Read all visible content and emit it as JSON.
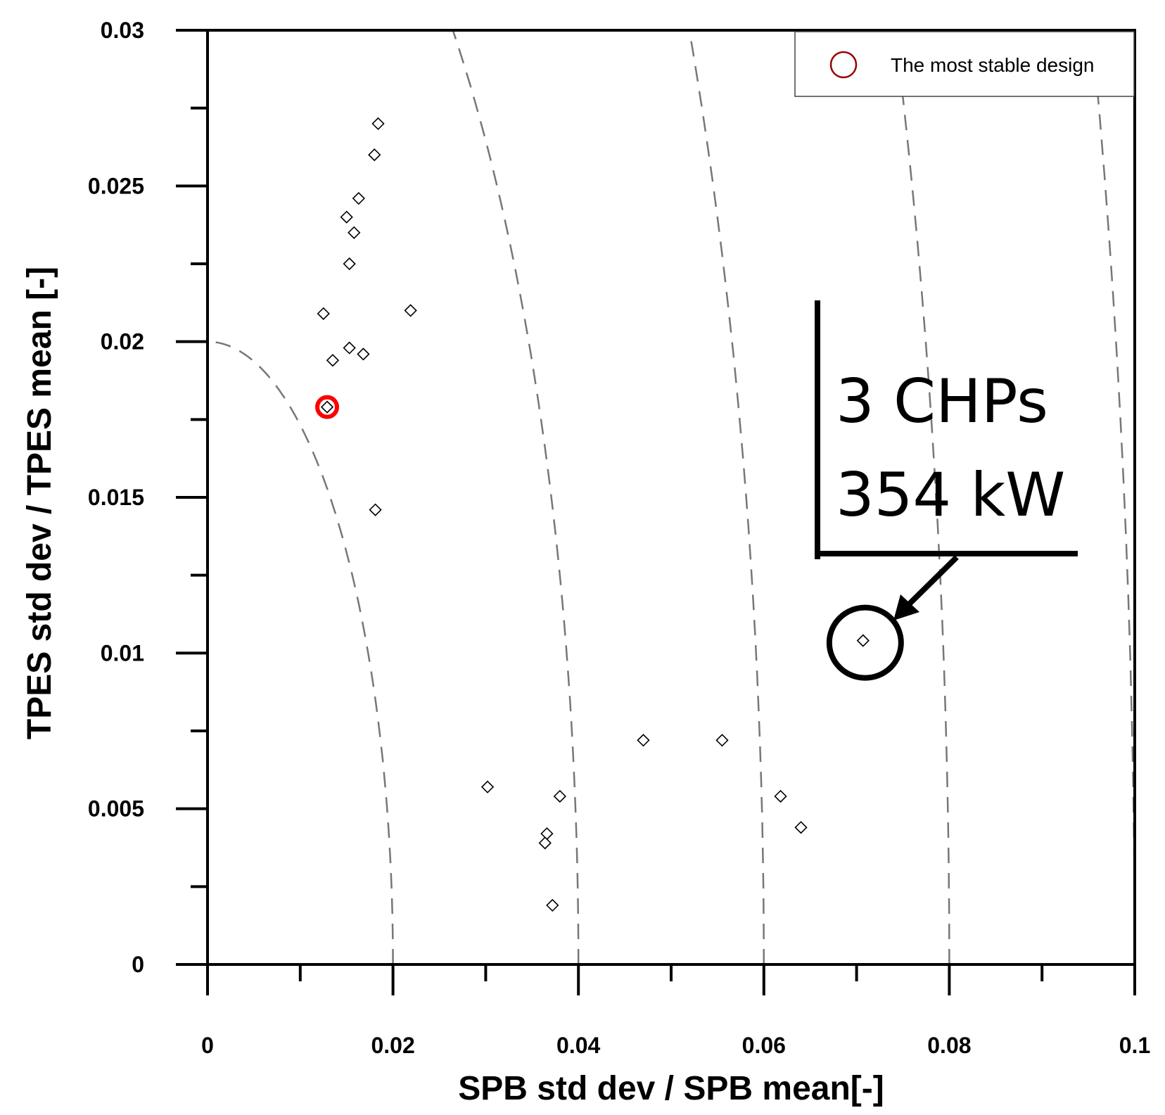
{
  "chart_data": {
    "type": "scatter",
    "xlabel": "SPB std dev / SPB mean[-]",
    "ylabel": "TPES std dev / TPES mean [-]",
    "xlim": [
      0,
      0.1
    ],
    "ylim": [
      0,
      0.03
    ],
    "x_ticks": [
      "0",
      "0.02",
      "0.04",
      "0.06",
      "0.08",
      "0.1"
    ],
    "y_ticks": [
      "0",
      "0.005",
      "0.01",
      "0.015",
      "0.02",
      "0.025",
      "0.03"
    ],
    "grid": false,
    "legend_position": "top-right",
    "legend": [
      {
        "label": "The most stable design",
        "marker": "circle",
        "color": "#990000"
      }
    ],
    "series": [
      {
        "marker": "diamond",
        "color": "#000000",
        "points": [
          [
            0.0184,
            0.027
          ],
          [
            0.018,
            0.026
          ],
          [
            0.0163,
            0.0246
          ],
          [
            0.015,
            0.024
          ],
          [
            0.0158,
            0.0235
          ],
          [
            0.0153,
            0.0225
          ],
          [
            0.0125,
            0.0209
          ],
          [
            0.0219,
            0.021
          ],
          [
            0.0153,
            0.0198
          ],
          [
            0.0168,
            0.0196
          ],
          [
            0.0135,
            0.0194
          ],
          [
            0.0129,
            0.0179
          ],
          [
            0.0181,
            0.0146
          ],
          [
            0.0302,
            0.0057
          ],
          [
            0.038,
            0.0054
          ],
          [
            0.0366,
            0.0042
          ],
          [
            0.0364,
            0.0039
          ],
          [
            0.0372,
            0.0019
          ],
          [
            0.047,
            0.0072
          ],
          [
            0.0555,
            0.0072
          ],
          [
            0.0618,
            0.0054
          ],
          [
            0.064,
            0.0044
          ],
          [
            0.0707,
            0.0104
          ]
        ]
      }
    ],
    "highlight": {
      "point": [
        0.0129,
        0.0179
      ],
      "color": "#ff0000"
    },
    "reference_curves": {
      "style": "dashed",
      "color": "#777777",
      "radii": [
        0.02,
        0.04,
        0.06,
        0.08,
        0.1
      ]
    },
    "annotation": {
      "lines": [
        "3 CHPs",
        "354 kW"
      ],
      "target_point": [
        0.0707,
        0.0104
      ]
    }
  }
}
